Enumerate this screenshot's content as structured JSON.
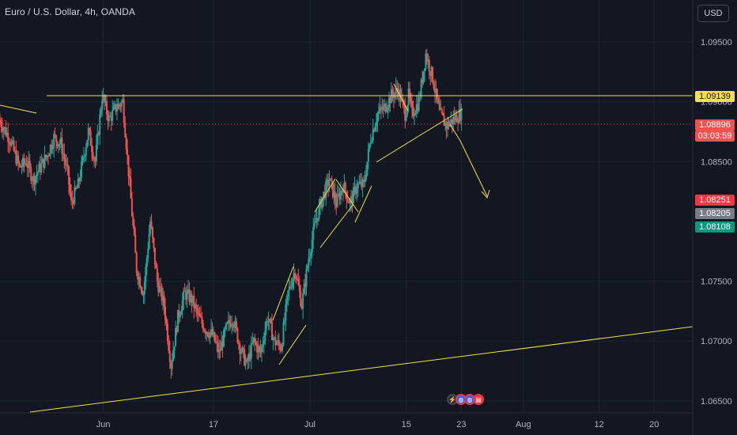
{
  "header": {
    "title": "Euro / U.S. Dollar, 4h, OANDA",
    "currency_button": "USD"
  },
  "colors": {
    "background": "#131722",
    "up": "#26a69a",
    "down": "#ef5350",
    "drawing": "#f4e04d",
    "grid": "#1f2433"
  },
  "price_tags": {
    "resistance": {
      "label": "1.09139",
      "bg": "#f4e04d",
      "fg": "#131722"
    },
    "last": {
      "label": "1.08896",
      "bg": "#ef5350",
      "fg": "#ffffff"
    },
    "countdown": {
      "label": "03:03:59",
      "bg": "#ef5350",
      "fg": "#ffffff"
    },
    "red_mark": {
      "label": "1.08251",
      "bg": "#f23645",
      "fg": "#ffffff"
    },
    "grey_mark": {
      "label": "1.08205",
      "bg": "#787b86",
      "fg": "#ffffff"
    },
    "green_mark": {
      "label": "1.08108",
      "bg": "#089981",
      "fg": "#ffffff"
    }
  },
  "events": [
    "lightning-icon",
    "globe-icon",
    "globe-icon",
    "us-flag-icon"
  ],
  "chart_data": {
    "type": "candlestick",
    "symbol": "Euro / U.S. Dollar",
    "interval": "4h",
    "source": "OANDA",
    "y_ticks": [
      "1.09500",
      "1.09000",
      "1.08500",
      "1.07500",
      "1.07000",
      "1.06500"
    ],
    "y_tick_values": [
      1.095,
      1.09,
      1.085,
      1.075,
      1.07,
      1.065
    ],
    "x_ticks": [
      "Jun",
      "17",
      "Jul",
      "15",
      "23",
      "Aug",
      "12",
      "20"
    ],
    "x_tick_days": [
      32,
      48,
      62,
      76,
      84,
      93,
      104,
      112
    ],
    "ylim": [
      1.064,
      1.0985
    ],
    "xlim": [
      17.0,
      117.6
    ],
    "last_price": 1.08896,
    "resistance": 1.09139,
    "ohlc_anchors": [
      [
        17.0,
        1.0885
      ],
      [
        18.5,
        1.087
      ],
      [
        20.0,
        1.0845
      ],
      [
        21.0,
        1.085
      ],
      [
        22.0,
        1.0835
      ],
      [
        23.0,
        1.0845
      ],
      [
        24.0,
        1.0855
      ],
      [
        25.0,
        1.087
      ],
      [
        26.0,
        1.0865
      ],
      [
        27.0,
        1.084
      ],
      [
        27.5,
        1.0815
      ],
      [
        28.5,
        1.083
      ],
      [
        29.5,
        1.086
      ],
      [
        30.0,
        1.0875
      ],
      [
        31.0,
        1.085
      ],
      [
        32.0,
        1.0905
      ],
      [
        33.0,
        1.0885
      ],
      [
        34.0,
        1.0895
      ],
      [
        35.0,
        1.09
      ],
      [
        36.0,
        1.083
      ],
      [
        37.0,
        1.076
      ],
      [
        38.0,
        1.074
      ],
      [
        39.0,
        1.08
      ],
      [
        40.0,
        1.075
      ],
      [
        41.0,
        1.073
      ],
      [
        42.0,
        1.068
      ],
      [
        43.0,
        1.072
      ],
      [
        44.0,
        1.074
      ],
      [
        45.0,
        1.0735
      ],
      [
        46.0,
        1.072
      ],
      [
        47.0,
        1.071
      ],
      [
        48.0,
        1.0705
      ],
      [
        49.0,
        1.069
      ],
      [
        50.0,
        1.071
      ],
      [
        51.0,
        1.072
      ],
      [
        52.0,
        1.0695
      ],
      [
        53.0,
        1.068
      ],
      [
        54.0,
        1.07
      ],
      [
        55.0,
        1.069
      ],
      [
        56.0,
        1.072
      ],
      [
        57.0,
        1.07
      ],
      [
        58.0,
        1.0695
      ],
      [
        59.0,
        1.074
      ],
      [
        60.0,
        1.076
      ],
      [
        61.0,
        1.073
      ],
      [
        62.0,
        1.077
      ],
      [
        63.0,
        1.08
      ],
      [
        64.0,
        1.082
      ],
      [
        65.0,
        1.0835
      ],
      [
        66.0,
        1.0815
      ],
      [
        67.0,
        1.083
      ],
      [
        68.0,
        1.0815
      ],
      [
        69.0,
        1.083
      ],
      [
        70.0,
        1.083
      ],
      [
        71.0,
        1.087
      ],
      [
        72.0,
        1.089
      ],
      [
        73.0,
        1.0895
      ],
      [
        74.0,
        1.0905
      ],
      [
        75.0,
        1.091
      ],
      [
        76.0,
        1.089
      ],
      [
        76.5,
        1.0905
      ],
      [
        77.0,
        1.089
      ],
      [
        78.0,
        1.09
      ],
      [
        79.0,
        1.094
      ],
      [
        80.0,
        1.092
      ],
      [
        81.0,
        1.089
      ],
      [
        82.0,
        1.088
      ],
      [
        83.0,
        1.0885
      ],
      [
        84.0,
        1.089
      ]
    ]
  }
}
